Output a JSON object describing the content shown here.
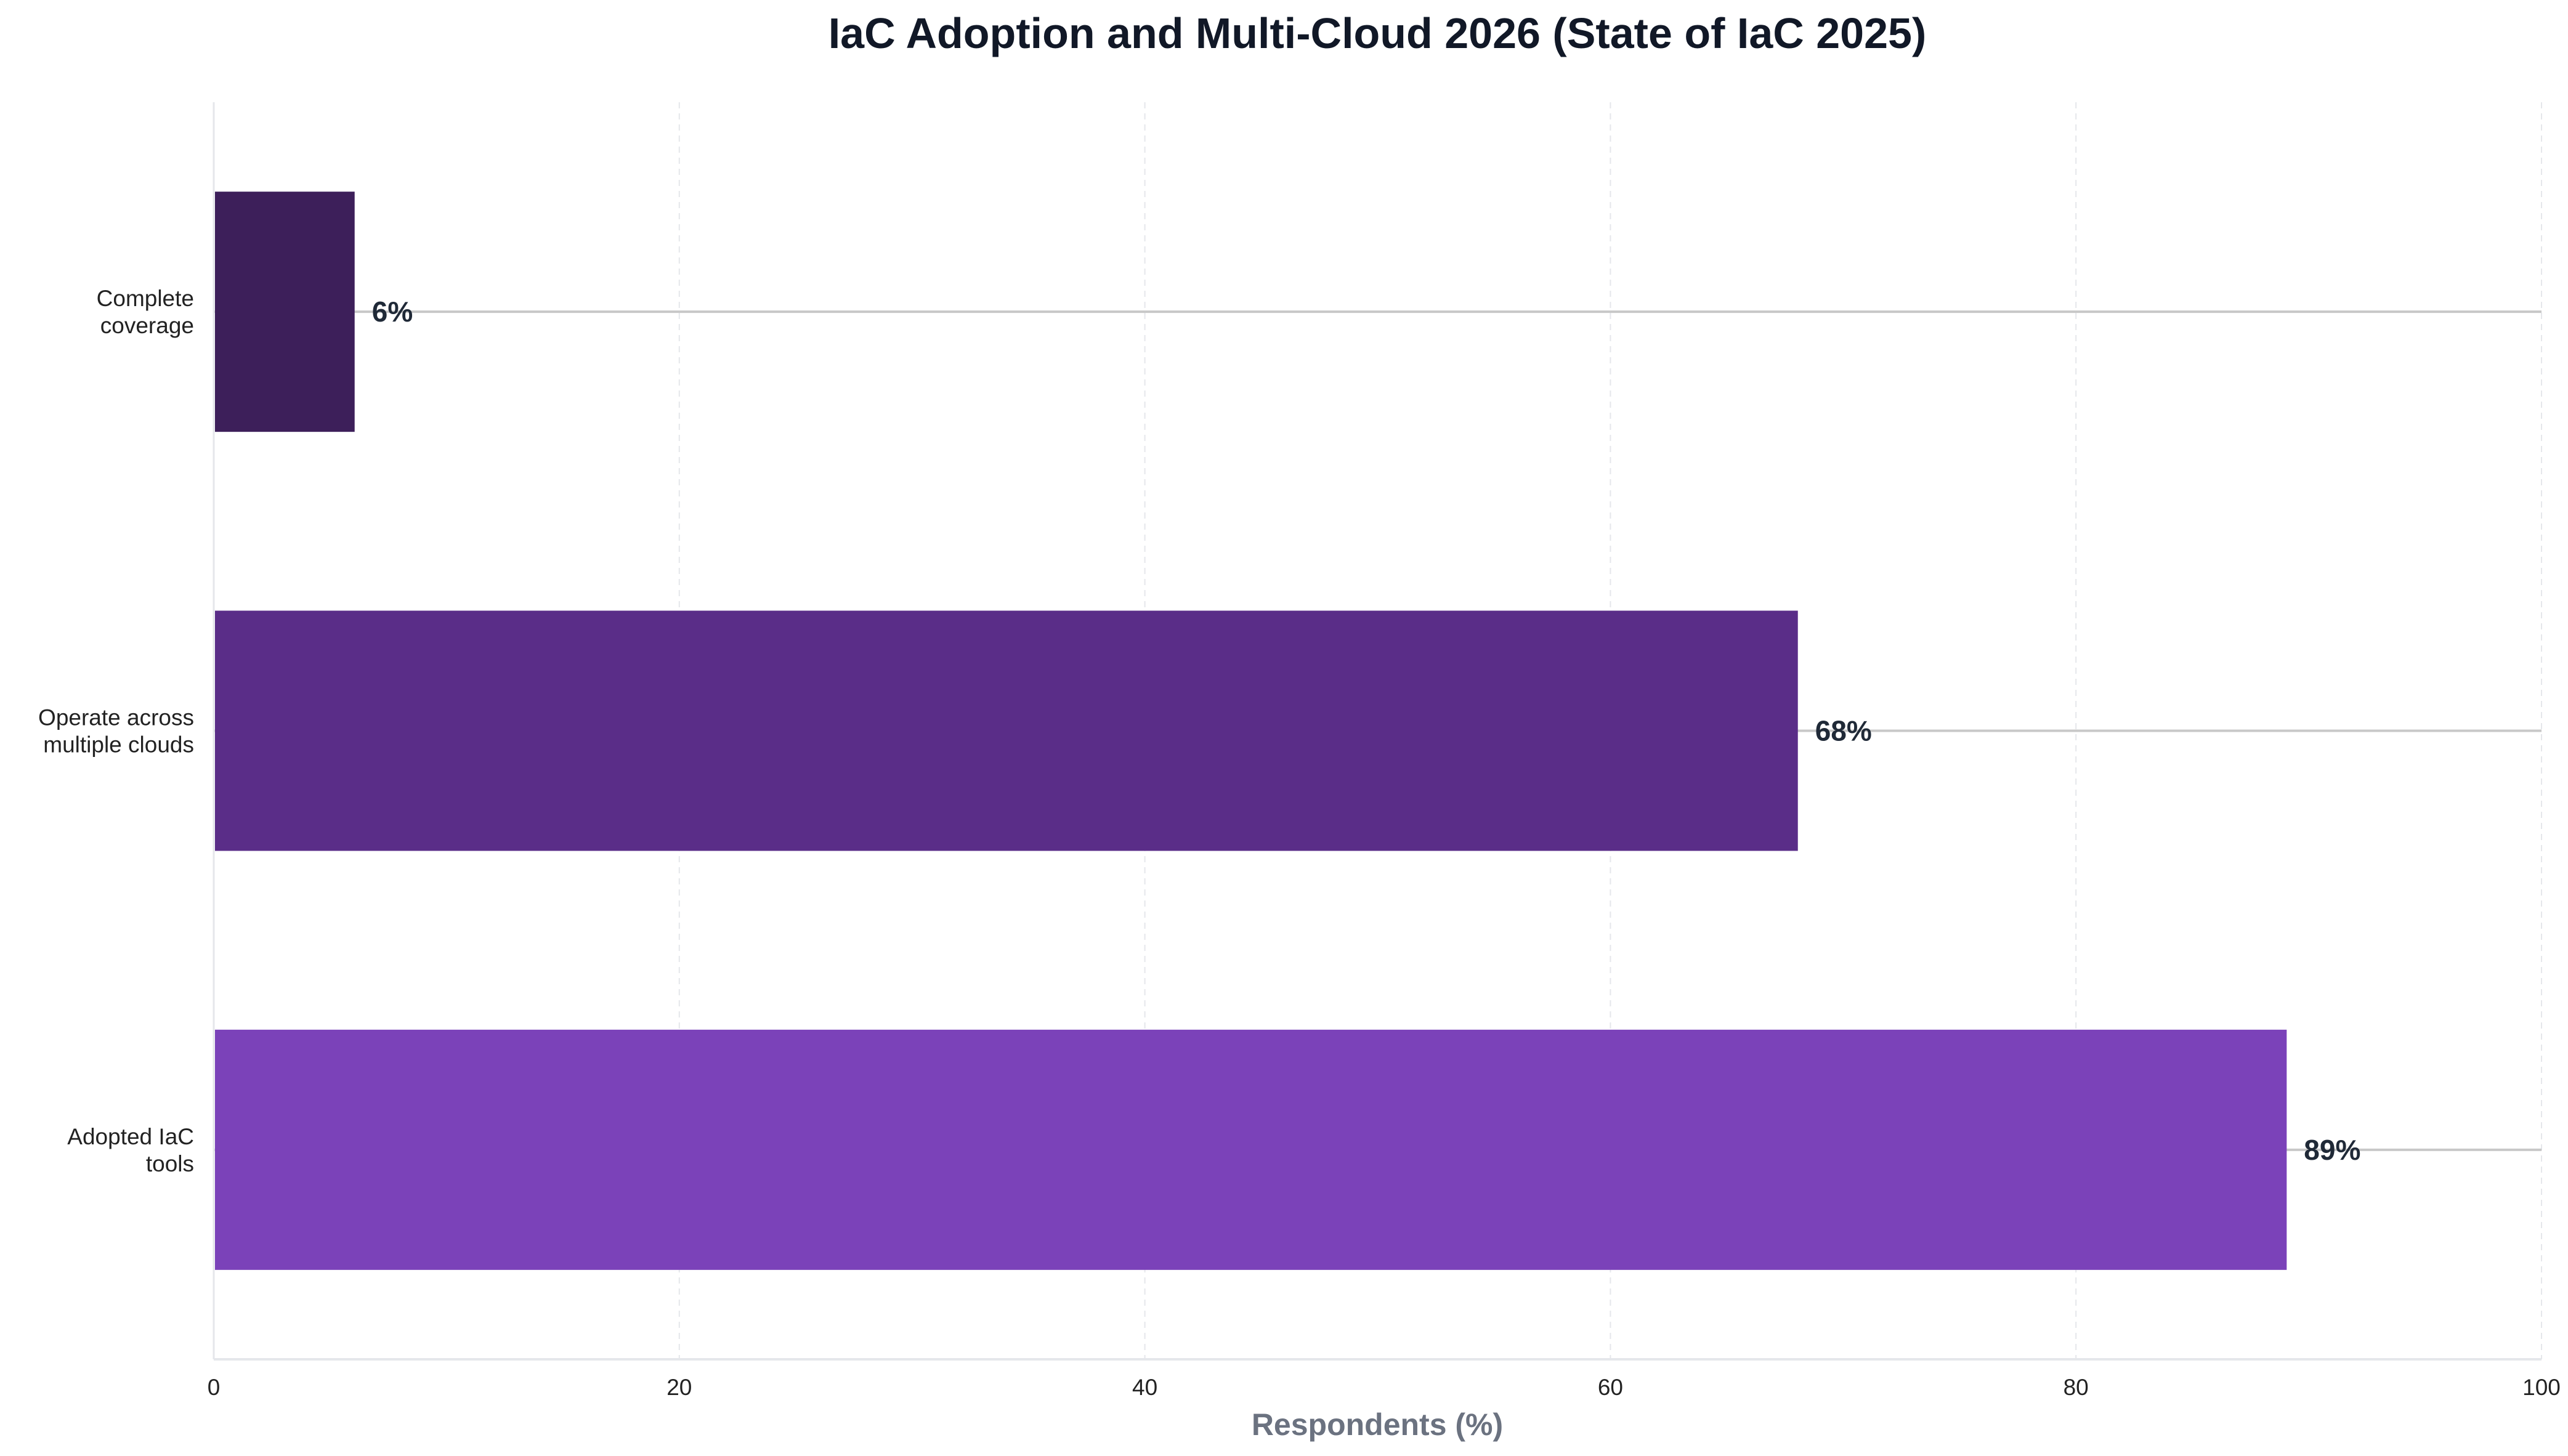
{
  "chart_data": {
    "type": "bar",
    "orientation": "horizontal",
    "title": "IaC Adoption and Multi-Cloud 2026 (State of IaC 2025)",
    "xlabel": "Respondents (%)",
    "ylabel": "",
    "xlim": [
      0,
      100
    ],
    "xticks": [
      "0",
      "20",
      "40",
      "60",
      "80",
      "100"
    ],
    "grid": "vertical dashed",
    "categories": [
      "Complete\ncoverage",
      "Operate across\nmultiple clouds",
      "Adopted IaC\ntools"
    ],
    "values": [
      6,
      68,
      89
    ],
    "value_labels": [
      "6%",
      "68%",
      "89%"
    ],
    "colors": [
      "#3d1f5a",
      "#5a2d88",
      "#7b42b9"
    ]
  }
}
